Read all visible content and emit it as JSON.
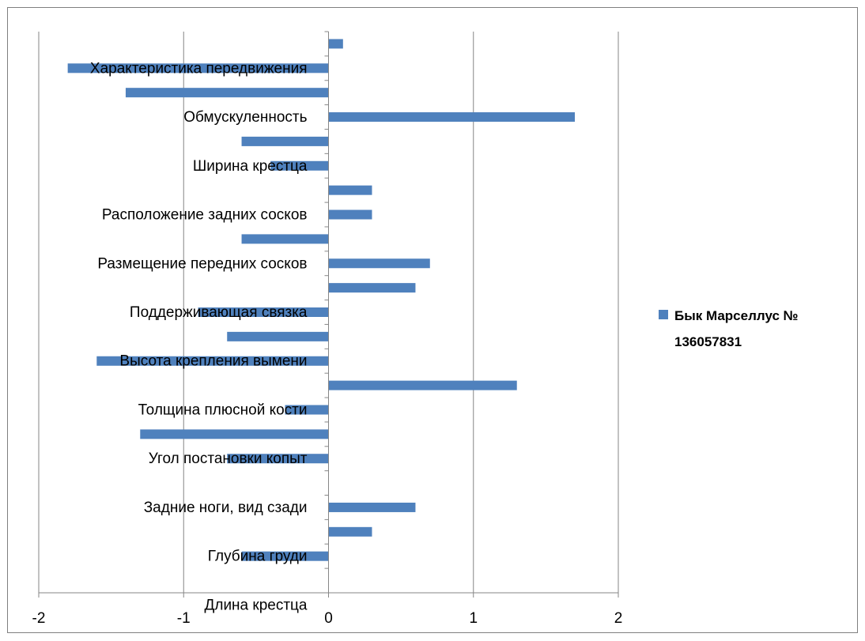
{
  "chart_data": {
    "type": "bar",
    "orientation": "horizontal",
    "title": "",
    "xlabel": "",
    "ylabel": "",
    "xlim": [
      -2,
      2
    ],
    "x_ticks": [
      "-2",
      "-1",
      "0",
      "1",
      "2"
    ],
    "grid": "vertical",
    "legend": "right",
    "category_labels_shown": [
      "Характеристика передвижения",
      "Обмускуленность",
      "Ширина крестца",
      "Расположение задних сосков",
      "Размещение передних сосков",
      "Поддерживающая связка",
      "Высота крепления вымени",
      "Толщина плюсной кости",
      "Угол постановки копыт",
      "Задние ноги, вид сзади",
      "Глубина груди",
      "Длина крестца"
    ],
    "series": [
      {
        "name": "Бык Марселлус № 136057831",
        "color": "#4f81bd",
        "values": [
          0.1,
          -1.8,
          -1.4,
          1.7,
          -0.6,
          -0.4,
          0.3,
          0.3,
          -0.6,
          0.7,
          0.6,
          -0.9,
          -0.7,
          -1.6,
          1.3,
          -0.3,
          -1.3,
          -0.7,
          0.0,
          0.6,
          0.3,
          -0.6,
          0.0
        ]
      }
    ]
  },
  "legend": {
    "label_line1": "Бык Марселлус №",
    "label_line2": "136057831"
  }
}
